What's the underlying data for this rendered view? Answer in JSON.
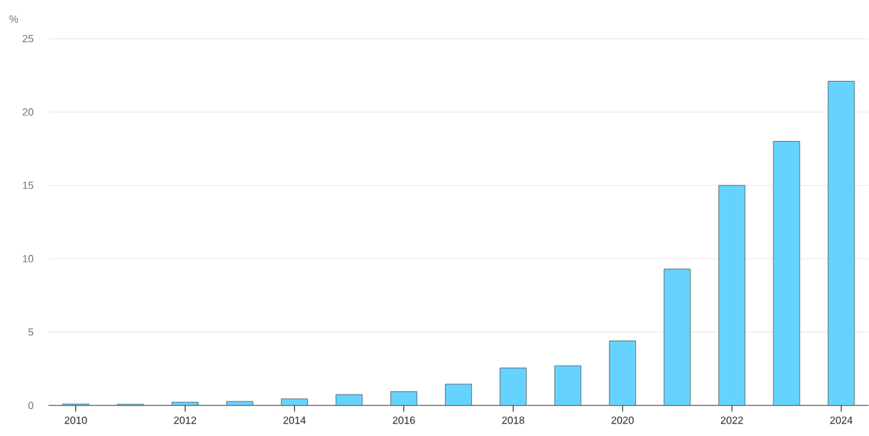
{
  "chart_data": {
    "type": "bar",
    "ylabel": "%",
    "x": [
      2010,
      2011,
      2012,
      2013,
      2014,
      2015,
      2016,
      2017,
      2018,
      2019,
      2020,
      2021,
      2022,
      2023,
      2024
    ],
    "values": [
      0.09,
      0.08,
      0.22,
      0.27,
      0.45,
      0.74,
      0.94,
      1.45,
      2.55,
      2.7,
      4.4,
      9.3,
      15.0,
      18.0,
      22.1
    ],
    "color": "#66d3ff",
    "xlim": [
      2009.5,
      2024.5
    ],
    "xticks": [
      2010,
      2012,
      2014,
      2016,
      2018,
      2020,
      2022,
      2024
    ],
    "ylim": [
      0,
      25
    ],
    "yticks": [
      0,
      5,
      10,
      15,
      20,
      25
    ],
    "grid": "y"
  }
}
